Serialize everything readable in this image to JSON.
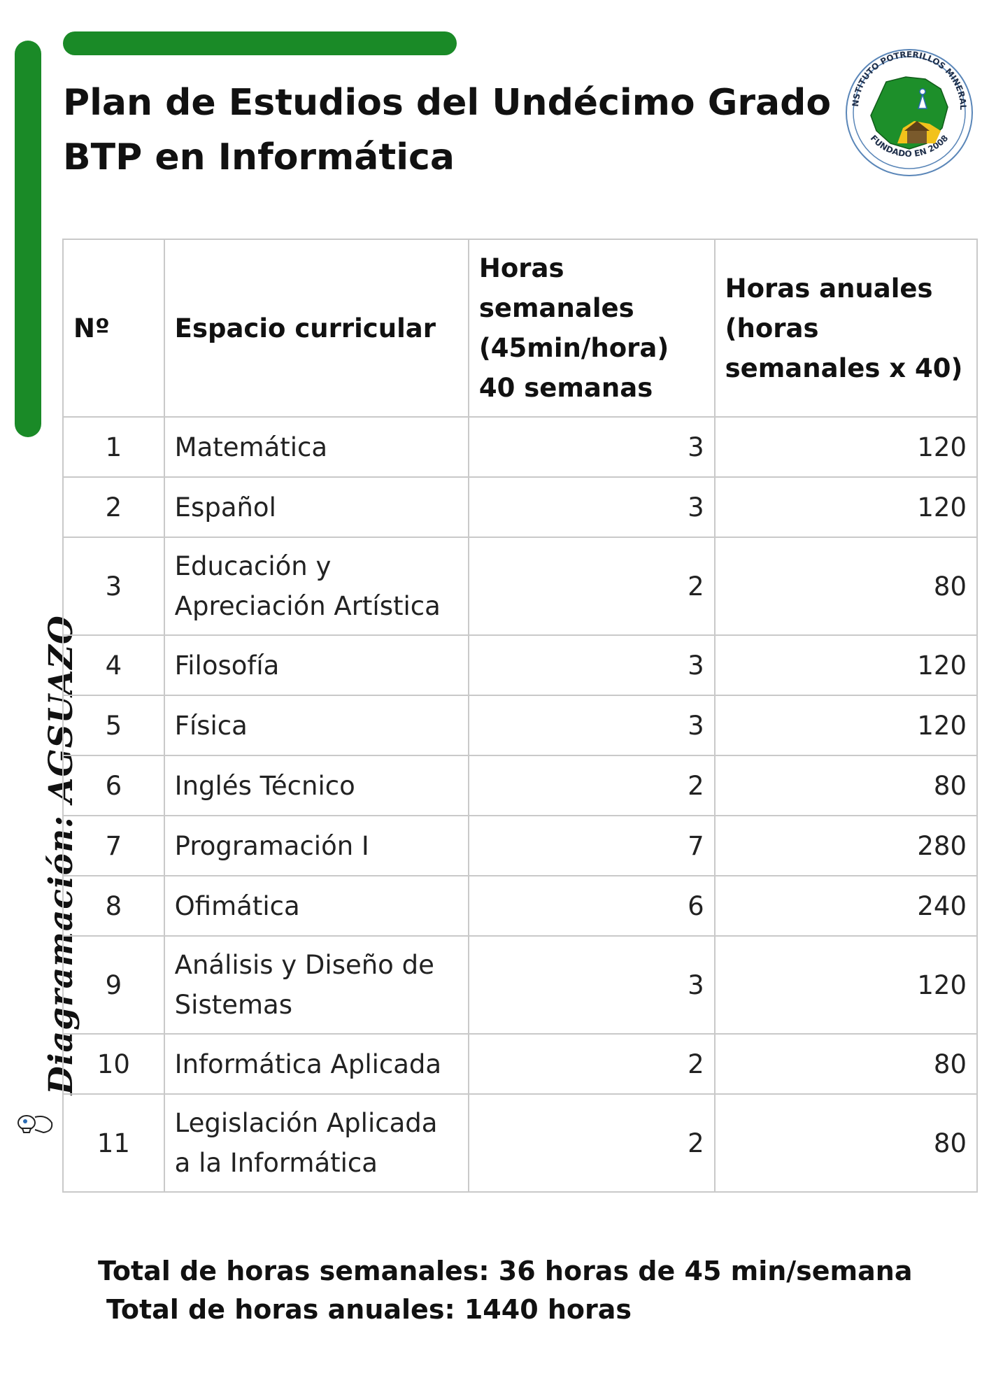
{
  "title": {
    "line1": "Plan de Estudios del Undécimo Grado",
    "line2": "BTP en Informática"
  },
  "logo": {
    "top_text": "INSTITUTO POTRERILLOS MINERAL",
    "bottom_text": "FUNDADO EN 2008",
    "colors": {
      "green": "#1d8f2a",
      "yellow": "#f2c21b",
      "brown": "#7a5a2c",
      "blue": "#2a6bb3"
    }
  },
  "credit": "Diagramación: AGSUAZO",
  "table": {
    "headers": [
      "Nº",
      "Espacio curricular",
      "Horas semanales (45min/hora) 40 semanas",
      "Horas anuales (horas semanales x 40)"
    ],
    "rows": [
      {
        "n": "1",
        "subject": "Matemática",
        "weekly": "3",
        "annual": "120"
      },
      {
        "n": "2",
        "subject": "Español",
        "weekly": "3",
        "annual": "120"
      },
      {
        "n": "3",
        "subject": "Educación y Apreciación Artística",
        "weekly": "2",
        "annual": "80"
      },
      {
        "n": "4",
        "subject": "Filosofía",
        "weekly": "3",
        "annual": "120"
      },
      {
        "n": "5",
        "subject": "Física",
        "weekly": "3",
        "annual": "120"
      },
      {
        "n": "6",
        "subject": "Inglés Técnico",
        "weekly": "2",
        "annual": "80"
      },
      {
        "n": "7",
        "subject": "Programación I",
        "weekly": "7",
        "annual": "280"
      },
      {
        "n": "8",
        "subject": "Ofimática",
        "weekly": "6",
        "annual": "240"
      },
      {
        "n": "9",
        "subject": "Análisis y Diseño de Sistemas",
        "weekly": "3",
        "annual": "120"
      },
      {
        "n": "10",
        "subject": "Informática Aplicada",
        "weekly": "2",
        "annual": "80"
      },
      {
        "n": "11",
        "subject": "Legislación Aplicada a la Informática",
        "weekly": "2",
        "annual": "80"
      }
    ]
  },
  "totals": {
    "weekly": "Total de horas semanales: 36 horas de 45 min/semana",
    "annual": "Total de horas anuales: 1440 horas"
  },
  "accent_color": "#1a8a27"
}
